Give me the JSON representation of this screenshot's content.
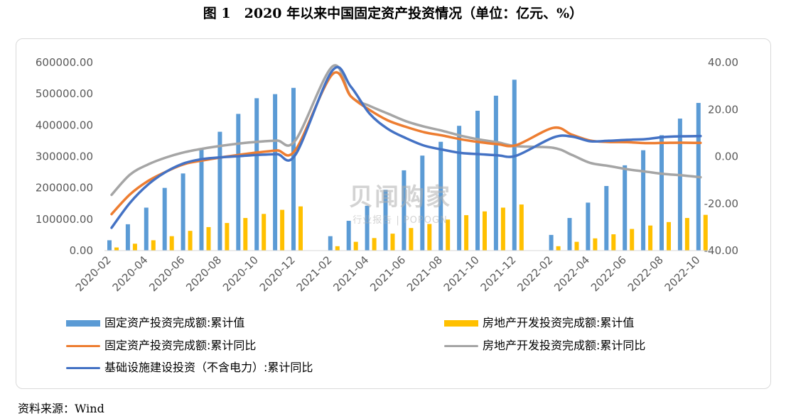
{
  "figure": {
    "title": "图 1　2020 年以来中国固定资产投资情况（单位：亿元、%）",
    "source": "资料来源：Wind"
  },
  "watermark": {
    "logo": "贝闻购家",
    "sub": "行业报告 | POPOGN"
  },
  "colors": {
    "fai_bar": "#5b9bd5",
    "re_bar": "#ffc000",
    "fai_line": "#ed7d31",
    "re_line": "#a5a5a5",
    "infra_line": "#4472c4",
    "axis_text": "#595959",
    "gridline": "#d9d9d9"
  },
  "chart_data": {
    "type": "bar",
    "title": "",
    "x": [
      "2020-02",
      "2020-03",
      "2020-04",
      "2020-05",
      "2020-06",
      "2020-07",
      "2020-08",
      "2020-09",
      "2020-10",
      "2020-11",
      "2020-12",
      "2021-02",
      "2021-03",
      "2021-04",
      "2021-05",
      "2021-06",
      "2021-07",
      "2021-08",
      "2021-09",
      "2021-10",
      "2021-11",
      "2021-12",
      "2022-02",
      "2022-03",
      "2022-04",
      "2022-05",
      "2022-06",
      "2022-07",
      "2022-08",
      "2022-09",
      "2022-10"
    ],
    "x_tick_labels": [
      "2020-02",
      "2020-04",
      "2020-06",
      "2020-08",
      "2020-10",
      "2020-12",
      "2021-02",
      "2021-04",
      "2021-06",
      "2021-08",
      "2021-10",
      "2021-12",
      "2022-02",
      "2022-04",
      "2022-06",
      "2022-08",
      "2022-10"
    ],
    "y_left": {
      "ylim": [
        0,
        600000
      ],
      "ticks": [
        "0.00",
        "100000.00",
        "200000.00",
        "300000.00",
        "400000.00",
        "500000.00",
        "600000.00"
      ]
    },
    "y_right": {
      "ylim": [
        -40,
        40
      ],
      "ticks": [
        "-40.00",
        "-20.00",
        "0.00",
        "20.00",
        "40.00"
      ]
    },
    "grid": false,
    "legend_position": "bottom",
    "series": [
      {
        "name": "固定资产投资完成额:累计值",
        "type": "bar",
        "axis": "left",
        "values": [
          33000,
          84000,
          137000,
          200000,
          246000,
          327000,
          379000,
          436000,
          486000,
          499000,
          519000,
          46000,
          95000,
          143000,
          194000,
          256000,
          303000,
          347000,
          398000,
          446000,
          494000,
          545000,
          50000,
          104000,
          153000,
          206000,
          272000,
          320000,
          368000,
          421000,
          471000
        ]
      },
      {
        "name": "房地产开发投资完成额:累计值",
        "type": "bar",
        "axis": "left",
        "values": [
          10000,
          22000,
          33000,
          46000,
          63000,
          75000,
          88000,
          104000,
          117000,
          130000,
          141000,
          14000,
          28000,
          40000,
          54000,
          72000,
          85000,
          99000,
          113000,
          125000,
          137000,
          147000,
          14000,
          28000,
          39000,
          52000,
          69000,
          80000,
          91000,
          104000,
          114000
        ]
      },
      {
        "name": "固定资产投资完成额:累计同比",
        "type": "line",
        "axis": "right",
        "values": [
          -24.5,
          -16.1,
          -10.3,
          -6.3,
          -3.1,
          -1.6,
          -0.3,
          0.8,
          1.8,
          2.6,
          2.9,
          35.0,
          25.6,
          19.9,
          15.4,
          12.6,
          10.3,
          8.9,
          7.3,
          6.1,
          5.2,
          4.9,
          12.2,
          9.3,
          6.8,
          6.2,
          6.1,
          5.7,
          5.8,
          5.9,
          5.8
        ]
      },
      {
        "name": "房地产开发投资完成额:累计同比",
        "type": "line",
        "axis": "right",
        "values": [
          -16.3,
          -7.7,
          -3.3,
          -0.3,
          1.9,
          3.4,
          4.6,
          5.6,
          6.3,
          6.8,
          7.0,
          38.3,
          25.6,
          21.6,
          18.3,
          15.0,
          12.7,
          10.9,
          8.8,
          7.2,
          6.0,
          4.4,
          3.7,
          0.7,
          -2.7,
          -4.0,
          -5.4,
          -6.4,
          -7.4,
          -8.0,
          -8.8
        ]
      },
      {
        "name": "基础设施建设投资（不含电力）:累计同比",
        "type": "line",
        "axis": "right",
        "values": [
          -30.3,
          -19.7,
          -11.8,
          -6.3,
          -2.7,
          -1.0,
          -0.3,
          0.2,
          0.7,
          1.0,
          0.9,
          36.6,
          29.7,
          18.4,
          11.8,
          7.8,
          4.6,
          2.9,
          1.5,
          1.0,
          0.5,
          0.4,
          8.1,
          8.5,
          6.5,
          6.7,
          7.1,
          7.4,
          8.3,
          8.6,
          8.7
        ]
      }
    ]
  }
}
